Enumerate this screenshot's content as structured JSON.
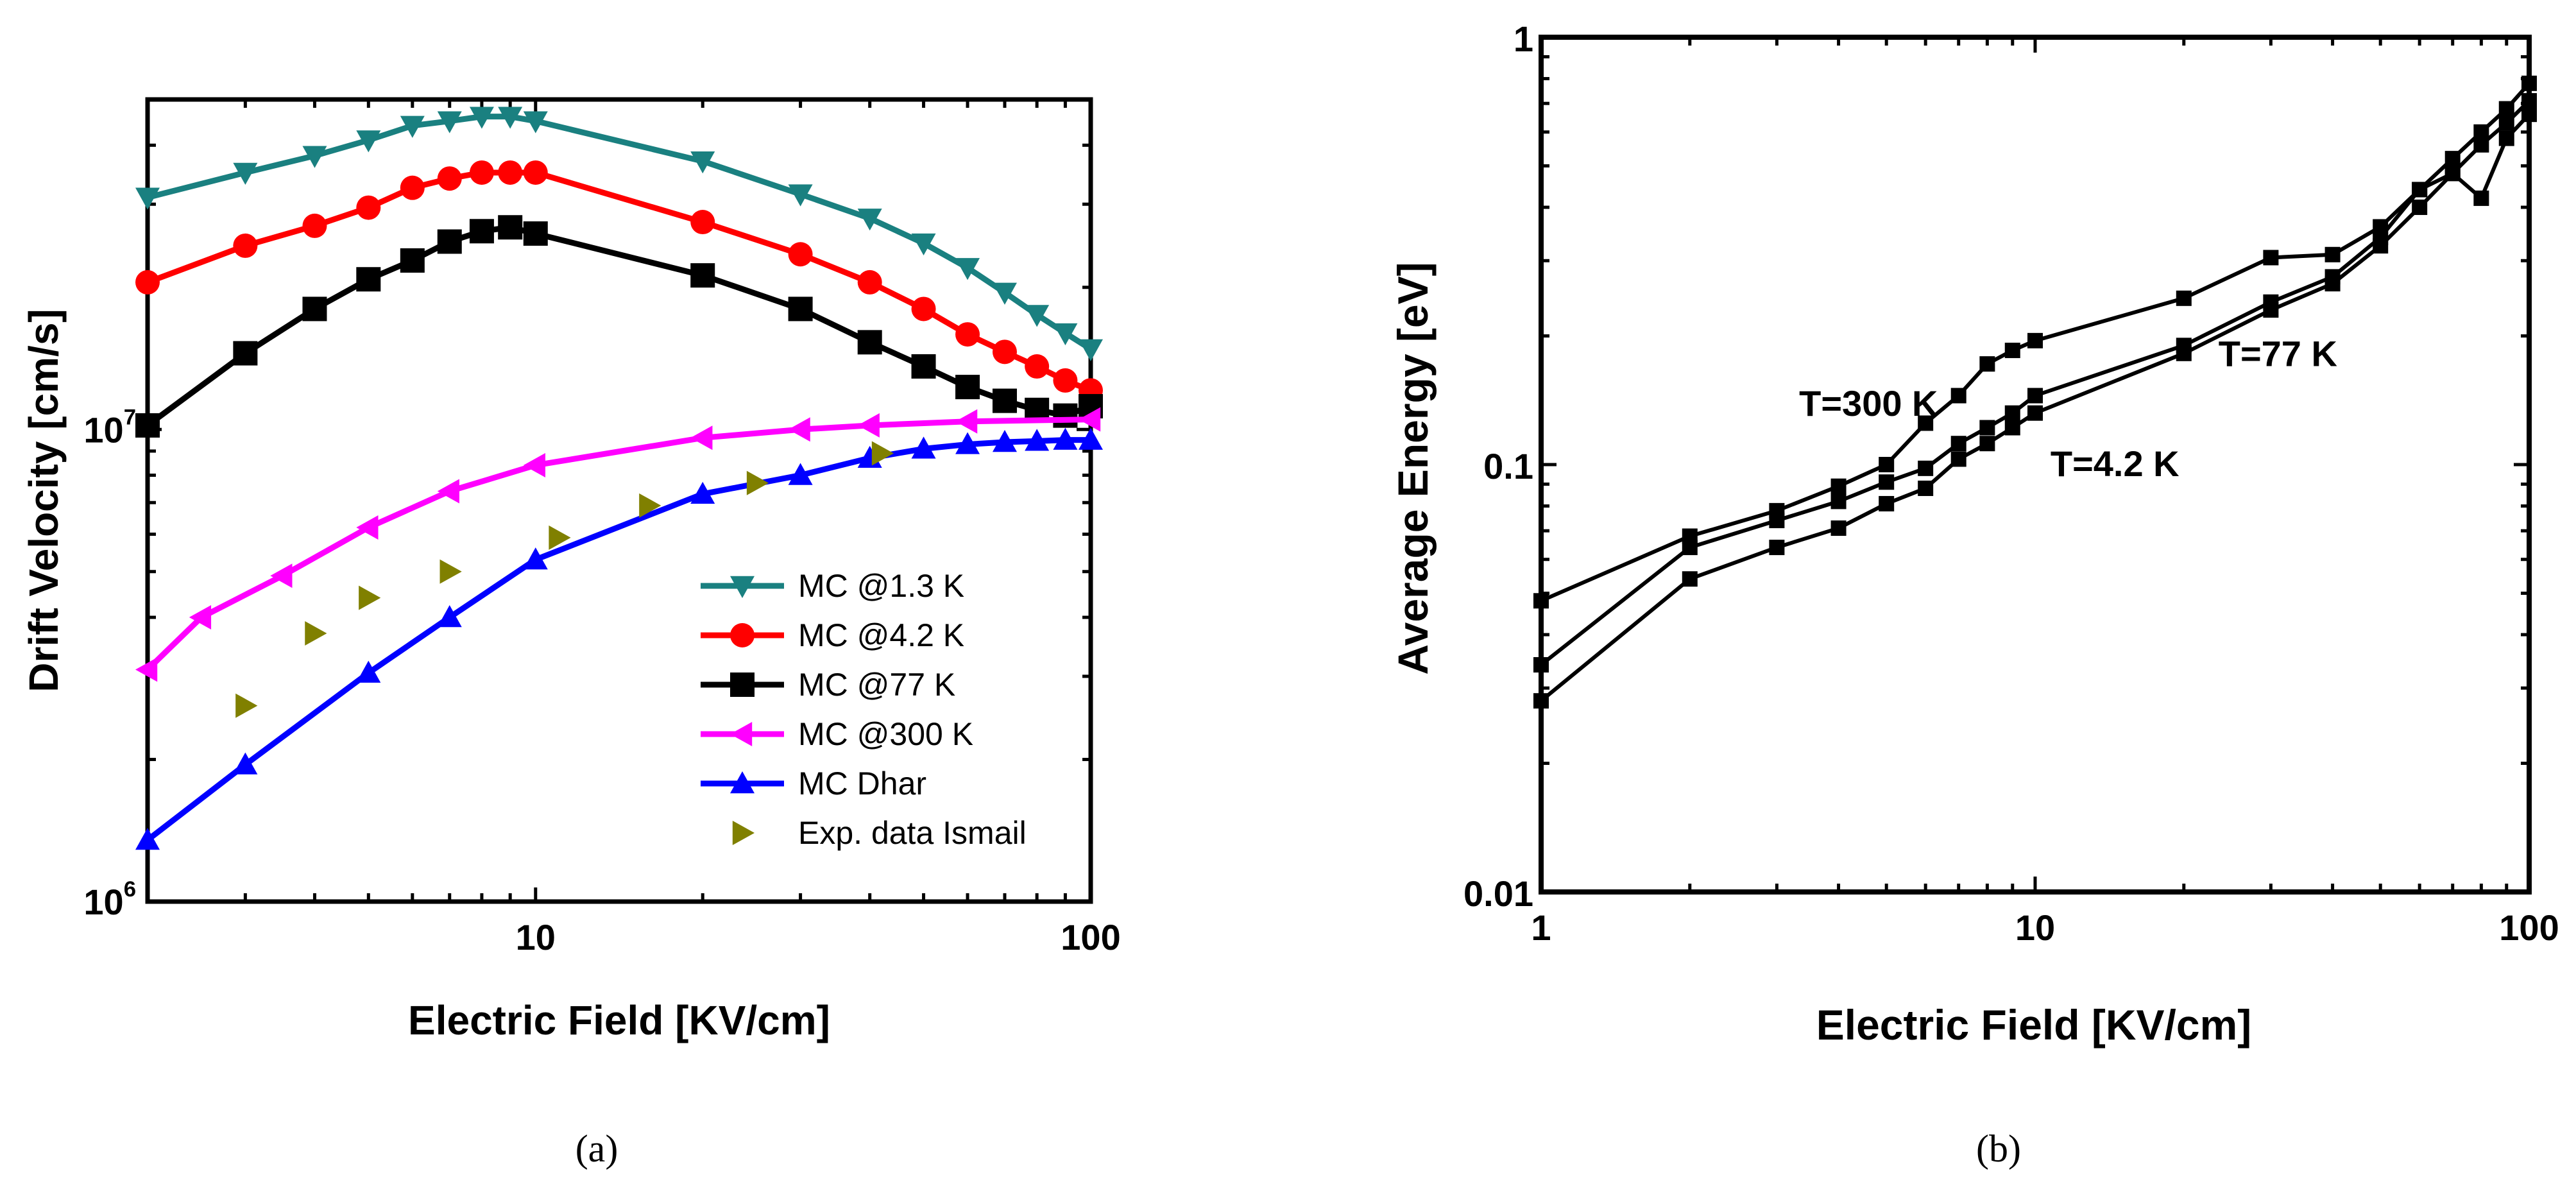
{
  "chart_data": [
    {
      "type": "line",
      "panel_label": "(a)",
      "xscale": "log",
      "yscale": "log",
      "xlim": [
        2,
        100
      ],
      "ylim": [
        1000000,
        50000000
      ],
      "xlabel": "Electric Field [KV/cm]",
      "ylabel": "Drift Velocity [cm/s]",
      "xticks": [
        {
          "value": 10,
          "label": "10"
        },
        {
          "value": 100,
          "label": "100"
        }
      ],
      "yticks": [
        {
          "value": 1000000,
          "base": "10",
          "exp": "6"
        },
        {
          "value": 10000000,
          "base": "10",
          "exp": "7"
        }
      ],
      "legend_position": "lower-right",
      "series": [
        {
          "name": "MC @1.3 K",
          "color": "#1a8080",
          "marker": "triangle-down",
          "line": true,
          "points": [
            [
              2,
              31000000
            ],
            [
              3,
              35000000
            ],
            [
              4,
              38000000
            ],
            [
              5,
              41000000
            ],
            [
              6,
              44000000
            ],
            [
              7,
              45000000
            ],
            [
              8,
              46000000
            ],
            [
              9,
              46000000
            ],
            [
              10,
              45000000
            ],
            [
              20,
              37000000
            ],
            [
              30,
              31500000
            ],
            [
              40,
              28000000
            ],
            [
              50,
              24800000
            ],
            [
              60,
              22000000
            ],
            [
              70,
              19500000
            ],
            [
              80,
              17500000
            ],
            [
              90,
              16000000
            ],
            [
              100,
              14800000
            ]
          ]
        },
        {
          "name": "MC @4.2 K",
          "color": "#ff0000",
          "marker": "circle",
          "line": true,
          "points": [
            [
              2,
              20500000
            ],
            [
              3,
              24500000
            ],
            [
              4,
              27000000
            ],
            [
              5,
              29500000
            ],
            [
              6,
              32500000
            ],
            [
              7,
              34000000
            ],
            [
              8,
              35000000
            ],
            [
              9,
              35000000
            ],
            [
              10,
              35000000
            ],
            [
              20,
              27500000
            ],
            [
              30,
              23500000
            ],
            [
              40,
              20500000
            ],
            [
              50,
              18000000
            ],
            [
              60,
              15900000
            ],
            [
              70,
              14600000
            ],
            [
              80,
              13600000
            ],
            [
              90,
              12700000
            ],
            [
              100,
              12100000
            ]
          ]
        },
        {
          "name": "MC @77 K",
          "color": "#000000",
          "marker": "square",
          "line": true,
          "points": [
            [
              2,
              10200000
            ],
            [
              3,
              14500000
            ],
            [
              4,
              18000000
            ],
            [
              5,
              20800000
            ],
            [
              6,
              22800000
            ],
            [
              7,
              25000000
            ],
            [
              8,
              26300000
            ],
            [
              9,
              26800000
            ],
            [
              10,
              26000000
            ],
            [
              20,
              21200000
            ],
            [
              30,
              18000000
            ],
            [
              40,
              15300000
            ],
            [
              50,
              13600000
            ],
            [
              60,
              12300000
            ],
            [
              70,
              11500000
            ],
            [
              80,
              11000000
            ],
            [
              90,
              10700000
            ],
            [
              100,
              11200000
            ]
          ]
        },
        {
          "name": "MC @300 K",
          "color": "#ff00ff",
          "marker": "triangle-left",
          "line": true,
          "points": [
            [
              2,
              3100000
            ],
            [
              2.5,
              4000000
            ],
            [
              3.5,
              4900000
            ],
            [
              5,
              6200000
            ],
            [
              7,
              7400000
            ],
            [
              10,
              8400000
            ],
            [
              20,
              9600000
            ],
            [
              30,
              10000000
            ],
            [
              40,
              10200000
            ],
            [
              60,
              10400000
            ],
            [
              100,
              10500000
            ]
          ]
        },
        {
          "name": "MC Dhar",
          "color": "#0000ff",
          "marker": "triangle-up",
          "line": true,
          "points": [
            [
              2,
              1350000
            ],
            [
              3,
              1950000
            ],
            [
              5,
              3050000
            ],
            [
              7,
              4000000
            ],
            [
              10,
              5300000
            ],
            [
              20,
              7300000
            ],
            [
              30,
              8000000
            ],
            [
              40,
              8700000
            ],
            [
              50,
              9100000
            ],
            [
              60,
              9300000
            ],
            [
              70,
              9400000
            ],
            [
              80,
              9450000
            ],
            [
              90,
              9500000
            ],
            [
              100,
              9500000
            ]
          ]
        },
        {
          "name": "Exp. data Ismail",
          "color": "#808000",
          "marker": "triangle-right",
          "line": false,
          "points": [
            [
              3,
              2600000
            ],
            [
              4,
              3700000
            ],
            [
              5,
              4400000
            ],
            [
              7,
              5000000
            ],
            [
              11,
              5900000
            ],
            [
              16,
              6900000
            ],
            [
              25,
              7700000
            ],
            [
              42,
              8900000
            ]
          ]
        }
      ]
    },
    {
      "type": "line",
      "panel_label": "(b)",
      "xscale": "log",
      "yscale": "log",
      "xlim": [
        1,
        100
      ],
      "ylim": [
        0.01,
        1
      ],
      "xlabel": "Electric Field [KV/cm]",
      "ylabel": "Average Energy [eV]",
      "xticks": [
        {
          "value": 1,
          "label": "1"
        },
        {
          "value": 10,
          "label": "10"
        },
        {
          "value": 100,
          "label": "100"
        }
      ],
      "yticks": [
        {
          "value": 0.01,
          "label": "0.01"
        },
        {
          "value": 0.1,
          "label": "0.1"
        },
        {
          "value": 1,
          "label": "1"
        }
      ],
      "series": [
        {
          "name": "T=300 K",
          "color": "#000000",
          "marker": "square",
          "line": true,
          "points": [
            [
              1,
              0.048
            ],
            [
              2,
              0.068
            ],
            [
              3,
              0.078
            ],
            [
              4,
              0.089
            ],
            [
              5,
              0.1
            ],
            [
              6,
              0.125
            ],
            [
              7,
              0.145
            ],
            [
              8,
              0.172
            ],
            [
              9,
              0.185
            ],
            [
              10,
              0.195
            ],
            [
              20,
              0.245
            ],
            [
              30,
              0.305
            ],
            [
              40,
              0.31
            ],
            [
              50,
              0.36
            ],
            [
              60,
              0.44
            ],
            [
              70,
              0.48
            ],
            [
              80,
              0.42
            ],
            [
              90,
              0.58
            ],
            [
              100,
              0.66
            ]
          ]
        },
        {
          "name": "T=77 K",
          "color": "#000000",
          "marker": "square",
          "line": true,
          "points": [
            [
              1,
              0.034
            ],
            [
              2,
              0.064
            ],
            [
              3,
              0.074
            ],
            [
              4,
              0.082
            ],
            [
              5,
              0.091
            ],
            [
              6,
              0.098
            ],
            [
              7,
              0.112
            ],
            [
              8,
              0.122
            ],
            [
              9,
              0.132
            ],
            [
              10,
              0.145
            ],
            [
              20,
              0.19
            ],
            [
              30,
              0.24
            ],
            [
              40,
              0.275
            ],
            [
              50,
              0.34
            ],
            [
              60,
              0.44
            ],
            [
              70,
              0.52
            ],
            [
              80,
              0.6
            ],
            [
              90,
              0.68
            ],
            [
              100,
              0.78
            ]
          ]
        },
        {
          "name": "T=4.2 K",
          "color": "#000000",
          "marker": "square",
          "line": true,
          "points": [
            [
              1,
              0.028
            ],
            [
              2,
              0.054
            ],
            [
              3,
              0.064
            ],
            [
              4,
              0.071
            ],
            [
              5,
              0.081
            ],
            [
              6,
              0.088
            ],
            [
              7,
              0.103
            ],
            [
              8,
              0.112
            ],
            [
              9,
              0.122
            ],
            [
              10,
              0.132
            ],
            [
              20,
              0.182
            ],
            [
              30,
              0.23
            ],
            [
              40,
              0.265
            ],
            [
              50,
              0.325
            ],
            [
              60,
              0.4
            ],
            [
              70,
              0.48
            ],
            [
              80,
              0.56
            ],
            [
              90,
              0.63
            ],
            [
              100,
              0.71
            ]
          ]
        }
      ],
      "annotations": [
        {
          "text": "T=300 K",
          "x": 4.6,
          "y": 0.13
        },
        {
          "text": "T=77 K",
          "x": 31,
          "y": 0.17
        },
        {
          "text": "T=4.2 K",
          "x": 14.5,
          "y": 0.094
        }
      ]
    }
  ]
}
